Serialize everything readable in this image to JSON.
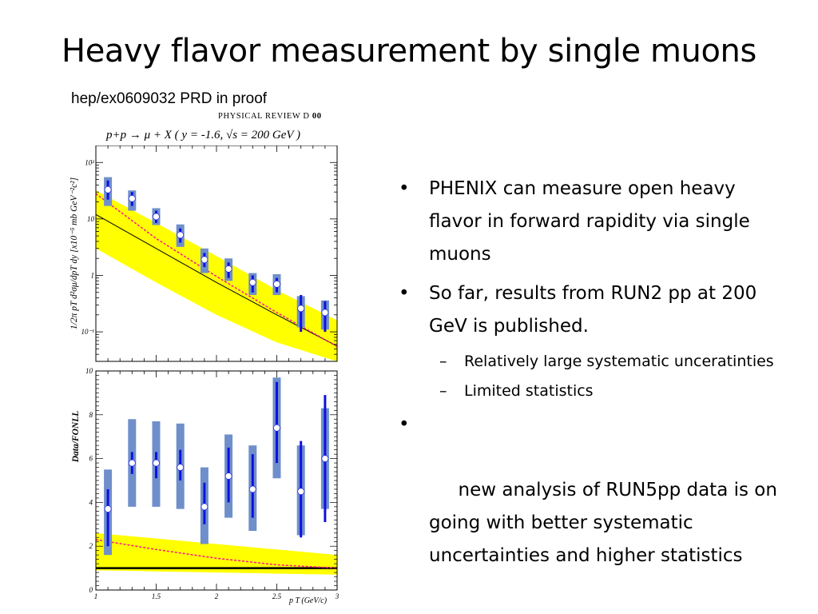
{
  "slide": {
    "title": "Heavy flavor measurement by single muons",
    "reference": "hep/ex0609032 PRD in proof",
    "journal_name": "PHYSICAL REVIEW D",
    "journal_volume": "00",
    "plot_header": "p+p → μ + X ( y = -1.6, √s = 200 GeV )"
  },
  "bullets": [
    {
      "text": "PHENIX can measure open heavy flavor in forward rapidity via single muons",
      "subs": []
    },
    {
      "text": "So far, results from RUN2 pp at 200 GeV is published.",
      "subs": [
        "Relatively large systematic unceratinties",
        "Limited statistics"
      ]
    },
    {
      "text": " new analysis of RUN5pp data is on going with better systematic uncertainties and higher statistics",
      "subs": []
    }
  ],
  "chart_data": [
    {
      "type": "scatter",
      "title": "",
      "ylabel": "1/2π pT d²σμ/dpT dy [x10⁻⁵ mb GeV⁻²c²]",
      "xlabel": "",
      "log_y": true,
      "xlim": [
        1.0,
        3.0
      ],
      "ylim": [
        0.03,
        200
      ],
      "ytick_labels": [
        "10⁻¹",
        "1",
        "10",
        "10²"
      ],
      "x": [
        1.1,
        1.3,
        1.5,
        1.7,
        1.9,
        2.1,
        2.3,
        2.5,
        2.7,
        2.9
      ],
      "y": [
        33,
        23,
        11,
        5.2,
        1.9,
        1.3,
        0.75,
        0.7,
        0.26,
        0.22
      ],
      "stat_err_low": [
        22,
        17,
        8.5,
        3.8,
        1.4,
        0.9,
        0.5,
        0.5,
        0.1,
        0.1
      ],
      "stat_err_high": [
        48,
        30,
        14,
        6.8,
        2.5,
        1.7,
        1.0,
        0.9,
        0.45,
        0.35
      ],
      "sys_low": [
        17,
        14,
        7.8,
        3.2,
        1.1,
        0.8,
        0.45,
        0.45,
        0.12,
        0.11
      ],
      "sys_high": [
        55,
        32,
        15.5,
        8,
        3,
        2,
        1.1,
        1.05,
        0.43,
        0.36
      ],
      "fonll_central": {
        "x": [
          1.0,
          1.5,
          2.0,
          2.5,
          3.0
        ],
        "y": [
          12,
          3.0,
          0.75,
          0.2,
          0.056
        ]
      },
      "fonll_band_low": {
        "x": [
          1.0,
          1.5,
          2.0,
          2.5,
          3.0
        ],
        "y": [
          3.0,
          0.75,
          0.2,
          0.065,
          0.03
        ]
      },
      "fonll_band_high": {
        "x": [
          1.0,
          1.5,
          2.0,
          2.5,
          3.0
        ],
        "y": [
          32,
          8.5,
          2.2,
          0.55,
          0.16
        ]
      },
      "dashed_curve": {
        "x": [
          1.0,
          1.5,
          2.0,
          2.5,
          3.0
        ],
        "y": [
          28,
          4.5,
          0.96,
          0.22,
          0.055
        ]
      },
      "colors": {
        "band": "#ffff00",
        "central": "#000000",
        "dashed": "#ff1493",
        "sys": "#6f8fcb",
        "stat": "#1010e0"
      }
    },
    {
      "type": "scatter",
      "title": "",
      "ylabel": "Data/FONLL",
      "xlabel": "p T (GeV/c)",
      "xlim": [
        1.0,
        3.0
      ],
      "ylim": [
        0,
        10
      ],
      "xtick_labels": [
        "1",
        "1.5",
        "2",
        "2.5",
        "3"
      ],
      "ytick_labels": [
        "0",
        "2",
        "4",
        "6",
        "8",
        "10"
      ],
      "x": [
        1.1,
        1.3,
        1.5,
        1.7,
        1.9,
        2.1,
        2.3,
        2.5,
        2.7,
        2.9
      ],
      "y": [
        3.7,
        5.8,
        5.8,
        5.6,
        3.8,
        5.2,
        4.6,
        7.4,
        4.5,
        6.0
      ],
      "stat_err_low": [
        2.0,
        5.3,
        5.1,
        5.0,
        3.0,
        4.0,
        3.3,
        5.8,
        2.4,
        3.1
      ],
      "stat_err_high": [
        4.6,
        6.3,
        6.3,
        6.4,
        4.9,
        6.5,
        6.2,
        9.5,
        6.8,
        8.9
      ],
      "sys_low": [
        1.6,
        3.8,
        3.8,
        3.7,
        2.1,
        3.3,
        2.7,
        5.1,
        2.5,
        3.7
      ],
      "sys_high": [
        5.5,
        7.8,
        7.7,
        7.6,
        5.6,
        7.1,
        6.6,
        9.7,
        6.6,
        8.3
      ],
      "reference_line": 1.0,
      "band_low": {
        "x": [
          1.0,
          3.0
        ],
        "y": [
          0.9,
          0.7
        ]
      },
      "band_high": {
        "x": [
          1.0,
          3.0
        ],
        "y": [
          2.6,
          1.6
        ]
      },
      "dashed_curve": {
        "x": [
          1.0,
          1.5,
          2.0,
          2.5,
          3.0
        ],
        "y": [
          2.3,
          1.85,
          1.45,
          1.15,
          1.0
        ]
      },
      "colors": {
        "band": "#ffff00",
        "reference": "#000000",
        "dashed": "#ff1493",
        "sys": "#6f8fcb",
        "stat": "#1010e0"
      }
    }
  ]
}
